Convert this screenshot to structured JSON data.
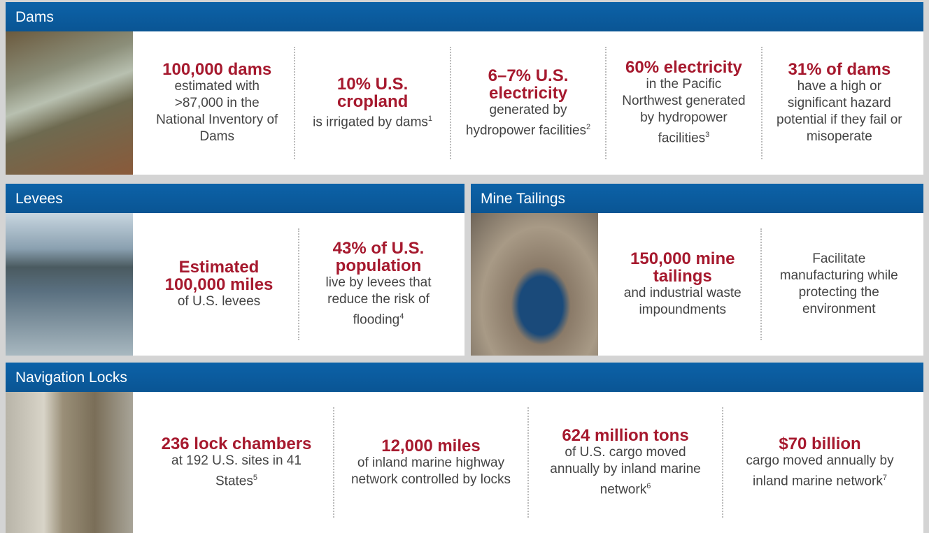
{
  "sections": [
    {
      "title": "Dams",
      "stats": [
        {
          "headline": "100,000 dams",
          "text": "estimated with >87,000 in the National Inventory of Dams"
        },
        {
          "headline": "10% U.S. cropland",
          "text": "is irrigated by dams",
          "note": "1"
        },
        {
          "headline": "6–7% U.S. electricity",
          "text": "generated by hydropower facilities",
          "note": "2"
        },
        {
          "headline": "60% electricity",
          "text": "in the Pacific Northwest generated by hydropower facilities",
          "note": "3"
        },
        {
          "headline": "31% of dams",
          "text": "have a high or significant hazard potential if they fail or misoperate"
        }
      ]
    },
    {
      "title": "Levees",
      "stats": [
        {
          "headline": "Estimated 100,000 miles",
          "text": "of U.S. levees"
        },
        {
          "headline": "43% of U.S. population",
          "text": "live by levees that reduce the risk of flooding",
          "note": "4"
        }
      ]
    },
    {
      "title": "Mine Tailings",
      "stats": [
        {
          "headline": "150,000 mine tailings",
          "text": "and industrial waste impoundments"
        },
        {
          "text": "Facilitate manufacturing while protecting the environment"
        }
      ]
    },
    {
      "title": "Navigation Locks",
      "stats": [
        {
          "headline": "236 lock chambers",
          "text": "at 192 U.S. sites in 41 States",
          "note": "5"
        },
        {
          "headline": "12,000 miles",
          "text": "of inland marine highway network controlled by locks"
        },
        {
          "headline": "624 million tons",
          "text": "of U.S. cargo moved annually by inland marine network",
          "note": "6"
        },
        {
          "headline": "$70 billion",
          "text": "cargo moved annually by inland marine network",
          "note": "7"
        }
      ]
    }
  ]
}
